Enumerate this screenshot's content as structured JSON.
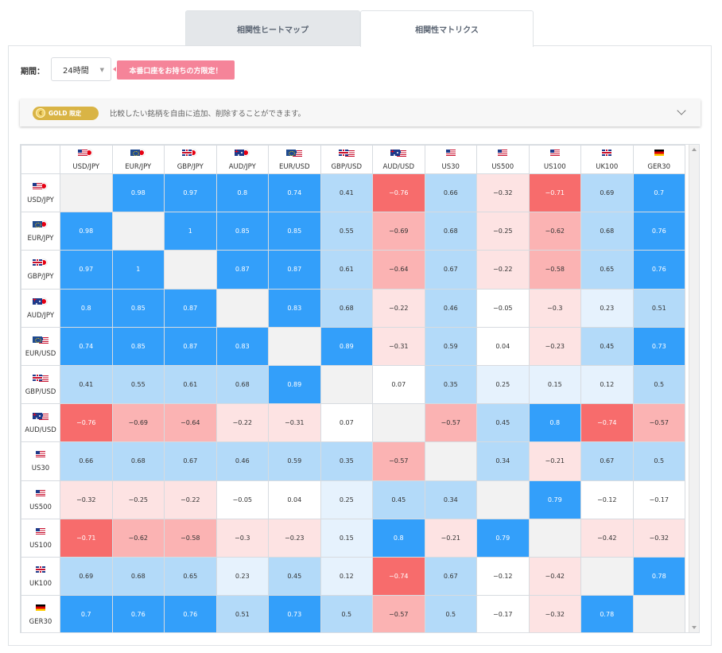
{
  "tabs": [
    {
      "label": "相関性ヒートマップ",
      "active": false
    },
    {
      "label": "相関性マトリクス",
      "active": true
    }
  ],
  "period": {
    "label": "期間：",
    "value": "24時間"
  },
  "badge": "本番口座をお持ちの方限定！",
  "gold": {
    "pill": "GOLD 限定",
    "text": "比較したい銘柄を自由に追加、削除することができます。"
  },
  "colors": {
    "strong_pos": "#339ffa",
    "mid_pos": "#b3daf9",
    "weak_pos": "#e6f2fd",
    "neutral": "#ffffff",
    "weak_neg": "#fde3e3",
    "mid_neg": "#fbb3b3",
    "strong_neg": "#f76c6c",
    "diagonal": "#f2f2f2"
  },
  "matrix": {
    "symbols": [
      "USD/JPY",
      "EUR/JPY",
      "GBP/JPY",
      "AUD/JPY",
      "EUR/USD",
      "GBP/USD",
      "AUD/USD",
      "US30",
      "US500",
      "US100",
      "UK100",
      "GER30"
    ],
    "flags": [
      [
        "us",
        "jp"
      ],
      [
        "eu",
        "jp"
      ],
      [
        "gb",
        "jp"
      ],
      [
        "au",
        "jp"
      ],
      [
        "eu",
        "us"
      ],
      [
        "gb",
        "us"
      ],
      [
        "au",
        "us"
      ],
      [
        "us"
      ],
      [
        "us"
      ],
      [
        "us"
      ],
      [
        "gb"
      ],
      [
        "de"
      ]
    ],
    "values": [
      [
        null,
        0.98,
        0.97,
        0.8,
        0.74,
        0.41,
        -0.76,
        0.66,
        -0.32,
        -0.71,
        0.69,
        0.7
      ],
      [
        0.98,
        null,
        1,
        0.85,
        0.85,
        0.55,
        -0.69,
        0.68,
        -0.25,
        -0.62,
        0.68,
        0.76
      ],
      [
        0.97,
        1,
        null,
        0.87,
        0.87,
        0.61,
        -0.64,
        0.67,
        -0.22,
        -0.58,
        0.65,
        0.76
      ],
      [
        0.8,
        0.85,
        0.87,
        null,
        0.83,
        0.68,
        -0.22,
        0.46,
        -0.05,
        -0.3,
        0.23,
        0.51
      ],
      [
        0.74,
        0.85,
        0.87,
        0.83,
        null,
        0.89,
        -0.31,
        0.59,
        0.04,
        -0.23,
        0.45,
        0.73
      ],
      [
        0.41,
        0.55,
        0.61,
        0.68,
        0.89,
        null,
        0.07,
        0.35,
        0.25,
        0.15,
        0.12,
        0.5
      ],
      [
        -0.76,
        -0.69,
        -0.64,
        -0.22,
        -0.31,
        0.07,
        null,
        -0.57,
        0.45,
        0.8,
        -0.74,
        -0.57
      ],
      [
        0.66,
        0.68,
        0.67,
        0.46,
        0.59,
        0.35,
        -0.57,
        null,
        0.34,
        -0.21,
        0.67,
        0.5
      ],
      [
        -0.32,
        -0.25,
        -0.22,
        -0.05,
        0.04,
        0.25,
        0.45,
        0.34,
        null,
        0.79,
        -0.12,
        -0.17
      ],
      [
        -0.71,
        -0.62,
        -0.58,
        -0.3,
        -0.23,
        0.15,
        0.8,
        -0.21,
        0.79,
        null,
        -0.42,
        -0.32
      ],
      [
        0.69,
        0.68,
        0.65,
        0.23,
        0.45,
        0.12,
        -0.74,
        0.67,
        -0.12,
        -0.42,
        null,
        0.78
      ],
      [
        0.7,
        0.76,
        0.76,
        0.51,
        0.73,
        0.5,
        -0.57,
        0.5,
        -0.17,
        -0.32,
        0.78,
        null
      ]
    ]
  }
}
